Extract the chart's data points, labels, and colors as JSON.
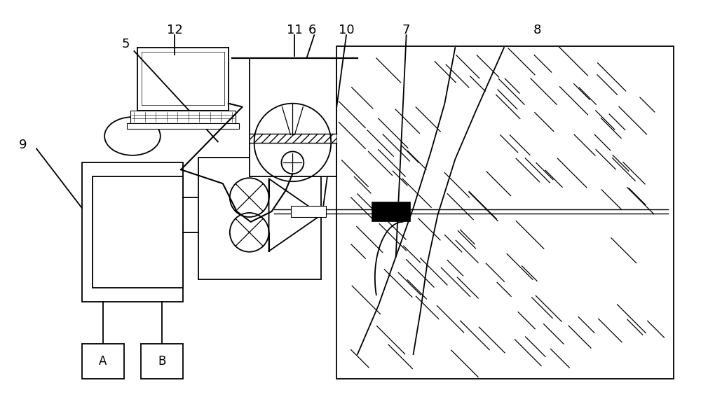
{
  "bg_color": "#ffffff",
  "line_color": "#000000",
  "label_fontsize": 13,
  "fig_w": 10.0,
  "fig_h": 5.97
}
